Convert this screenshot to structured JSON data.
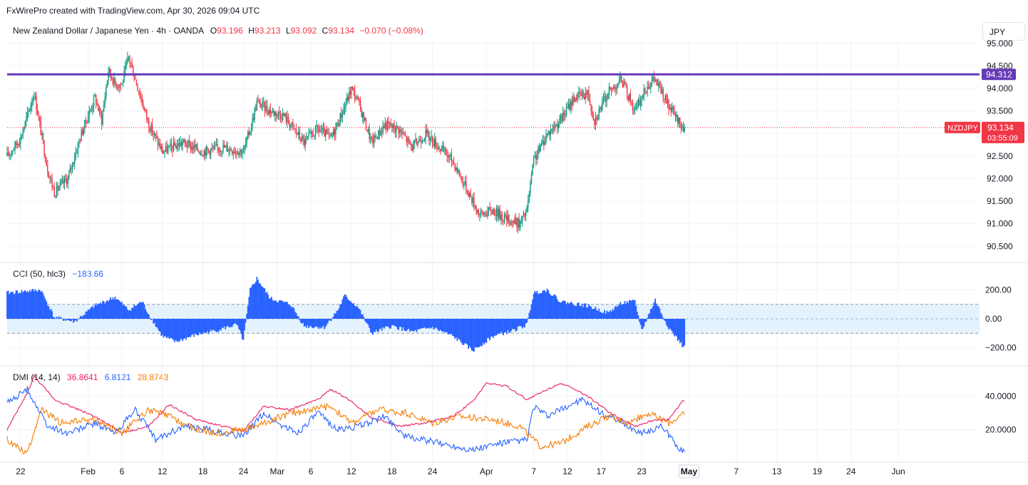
{
  "header": {
    "attribution": "FxWirePro created with TradingView.com, Apr 30, 2026 09:04 UTC",
    "symbol_title": "New Zealand Dollar / Japanese Yen · 4h · OANDA",
    "o_label": "O",
    "o_value": "93.196",
    "h_label": "H",
    "h_value": "93.213",
    "l_label": "L",
    "l_value": "93.092",
    "c_label": "C",
    "c_value": "93.134",
    "change": "−0.070 (−0.08%)",
    "currency_button": "JPY"
  },
  "price_pane": {
    "symbol_badge": "NZDJPY",
    "last_price_label": "93.134",
    "countdown": "03:55:09",
    "hline_label": "94.312",
    "y_ticks": [
      "95.000",
      "94.500",
      "94.000",
      "93.500",
      "93.000",
      "92.500",
      "92.000",
      "91.500",
      "91.000",
      "90.500"
    ]
  },
  "cci_pane": {
    "title": "CCI (50, hlc3)",
    "value": "−183.66",
    "y_ticks": [
      "200.00",
      "0.00",
      "−200.00"
    ]
  },
  "dmi_pane": {
    "title": "DMI (14, 14)",
    "plus_di": "36.8641",
    "minus_di": "6.8121",
    "adx": "28.8743",
    "y_ticks": [
      "40.0000",
      "20.0000"
    ]
  },
  "x_axis": {
    "labels": [
      "22",
      "Feb",
      "6",
      "12",
      "18",
      "24",
      "Mar",
      "6",
      "12",
      "18",
      "24",
      "Apr",
      "7",
      "12",
      "17",
      "23",
      "May",
      "7",
      "13",
      "19",
      "24",
      "Jun"
    ],
    "highlighted": "May"
  },
  "colors": {
    "bull": "#089981",
    "bear": "#f23645",
    "hline": "#673ab7",
    "cci": "#2962ff",
    "cci_band": "#e3f2fd",
    "plus_di": "#2962ff",
    "minus_di": "#f57c00",
    "adx": "#e91e63"
  },
  "chart_data": [
    {
      "type": "candlestick",
      "title": "New Zealand Dollar / Japanese Yen · 4h · OANDA",
      "ylim": [
        90.3,
        95.2
      ],
      "horizontal_line": 94.312,
      "last_price": 93.134,
      "anchors": [
        {
          "x": "Jan 20",
          "close": 92.5
        },
        {
          "x": "Jan 22",
          "close": 92.9
        },
        {
          "x": "Jan 24",
          "close": 93.9
        },
        {
          "x": "Jan 26",
          "close": 92.2
        },
        {
          "x": "Jan 27",
          "close": 91.7
        },
        {
          "x": "Jan 29",
          "close": 92.0
        },
        {
          "x": "Jan 31",
          "close": 93.0
        },
        {
          "x": "Feb 2",
          "close": 93.8
        },
        {
          "x": "Feb 3",
          "close": 93.3
        },
        {
          "x": "Feb 4",
          "close": 94.4
        },
        {
          "x": "Feb 5",
          "close": 94.1
        },
        {
          "x": "Feb 6",
          "close": 94.1
        },
        {
          "x": "Feb 7",
          "close": 94.7
        },
        {
          "x": "Feb 8",
          "close": 94.2
        },
        {
          "x": "Feb 10",
          "close": 93.2
        },
        {
          "x": "Feb 12",
          "close": 92.6
        },
        {
          "x": "Feb 15",
          "close": 92.8
        },
        {
          "x": "Feb 18",
          "close": 92.6
        },
        {
          "x": "Feb 21",
          "close": 92.7
        },
        {
          "x": "Feb 24",
          "close": 92.6
        },
        {
          "x": "Feb 25",
          "close": 93.1
        },
        {
          "x": "Feb 26",
          "close": 93.7
        },
        {
          "x": "Feb 28",
          "close": 93.5
        },
        {
          "x": "Mar 2",
          "close": 93.4
        },
        {
          "x": "Mar 5",
          "close": 92.8
        },
        {
          "x": "Mar 7",
          "close": 93.1
        },
        {
          "x": "Mar 9",
          "close": 92.9
        },
        {
          "x": "Mar 11",
          "close": 93.6
        },
        {
          "x": "Mar 12",
          "close": 94.0
        },
        {
          "x": "Mar 13",
          "close": 93.7
        },
        {
          "x": "Mar 15",
          "close": 92.8
        },
        {
          "x": "Mar 17",
          "close": 93.2
        },
        {
          "x": "Mar 19",
          "close": 93.1
        },
        {
          "x": "Mar 21",
          "close": 92.7
        },
        {
          "x": "Mar 23",
          "close": 93.0
        },
        {
          "x": "Mar 25",
          "close": 92.7
        },
        {
          "x": "Mar 27",
          "close": 92.4
        },
        {
          "x": "Mar 29",
          "close": 91.8
        },
        {
          "x": "Mar 31",
          "close": 91.2
        },
        {
          "x": "Apr 2",
          "close": 91.3
        },
        {
          "x": "Apr 4",
          "close": 91.1
        },
        {
          "x": "Apr 6",
          "close": 91.0
        },
        {
          "x": "Apr 7",
          "close": 91.3
        },
        {
          "x": "Apr 8",
          "close": 92.4
        },
        {
          "x": "Apr 10",
          "close": 93.0
        },
        {
          "x": "Apr 12",
          "close": 93.3
        },
        {
          "x": "Apr 14",
          "close": 93.8
        },
        {
          "x": "Apr 16",
          "close": 93.9
        },
        {
          "x": "Apr 17",
          "close": 93.3
        },
        {
          "x": "Apr 19",
          "close": 93.9
        },
        {
          "x": "Apr 21",
          "close": 94.2
        },
        {
          "x": "Apr 23",
          "close": 93.5
        },
        {
          "x": "Apr 25",
          "close": 94.1
        },
        {
          "x": "Apr 26",
          "close": 94.2
        },
        {
          "x": "Apr 28",
          "close": 93.6
        },
        {
          "x": "Apr 30",
          "close": 93.134
        }
      ]
    },
    {
      "type": "area",
      "title": "CCI (50, hlc3)",
      "ylim": [
        -260,
        260
      ],
      "bands": [
        -100,
        100
      ],
      "anchors": [
        {
          "x": "Jan 20",
          "y": 180
        },
        {
          "x": "Jan 25",
          "y": 200
        },
        {
          "x": "Jan 27",
          "y": 10
        },
        {
          "x": "Jan 30",
          "y": -20
        },
        {
          "x": "Feb 2",
          "y": 90
        },
        {
          "x": "Feb 5",
          "y": 150
        },
        {
          "x": "Feb 7",
          "y": 60
        },
        {
          "x": "Feb 9",
          "y": 120
        },
        {
          "x": "Feb 10",
          "y": 30
        },
        {
          "x": "Feb 12",
          "y": -120
        },
        {
          "x": "Feb 14",
          "y": -160
        },
        {
          "x": "Feb 17",
          "y": -110
        },
        {
          "x": "Feb 20",
          "y": -80
        },
        {
          "x": "Feb 23",
          "y": -40
        },
        {
          "x": "Feb 24",
          "y": -150
        },
        {
          "x": "Feb 25",
          "y": 200
        },
        {
          "x": "Feb 26",
          "y": 280
        },
        {
          "x": "Feb 28",
          "y": 140
        },
        {
          "x": "Mar 3",
          "y": 100
        },
        {
          "x": "Mar 5",
          "y": -50
        },
        {
          "x": "Mar 8",
          "y": -60
        },
        {
          "x": "Mar 10",
          "y": 60
        },
        {
          "x": "Mar 11",
          "y": 160
        },
        {
          "x": "Mar 13",
          "y": 80
        },
        {
          "x": "Mar 15",
          "y": -100
        },
        {
          "x": "Mar 18",
          "y": -50
        },
        {
          "x": "Mar 21",
          "y": -90
        },
        {
          "x": "Mar 24",
          "y": -60
        },
        {
          "x": "Mar 27",
          "y": -120
        },
        {
          "x": "Mar 30",
          "y": -220
        },
        {
          "x": "Apr 2",
          "y": -120
        },
        {
          "x": "Apr 5",
          "y": -80
        },
        {
          "x": "Apr 7",
          "y": -40
        },
        {
          "x": "Apr 8",
          "y": 180
        },
        {
          "x": "Apr 10",
          "y": 200
        },
        {
          "x": "Apr 12",
          "y": 120
        },
        {
          "x": "Apr 16",
          "y": 90
        },
        {
          "x": "Apr 19",
          "y": 40
        },
        {
          "x": "Apr 21",
          "y": 110
        },
        {
          "x": "Apr 23",
          "y": 120
        },
        {
          "x": "Apr 24",
          "y": -80
        },
        {
          "x": "Apr 26",
          "y": 130
        },
        {
          "x": "Apr 27",
          "y": 30
        },
        {
          "x": "Apr 28",
          "y": -60
        },
        {
          "x": "Apr 30",
          "y": -183.66
        }
      ]
    },
    {
      "type": "line",
      "title": "DMI (14, 14)",
      "ylim": [
        0,
        55
      ],
      "series": [
        {
          "name": "36.8641",
          "anchors": [
            {
              "x": "Jan 20",
              "y": 20
            },
            {
              "x": "Jan 23",
              "y": 42
            },
            {
              "x": "Jan 24",
              "y": 52
            },
            {
              "x": "Jan 27",
              "y": 38
            },
            {
              "x": "Feb 2",
              "y": 28
            },
            {
              "x": "Feb 6",
              "y": 18
            },
            {
              "x": "Feb 10",
              "y": 22
            },
            {
              "x": "Feb 13",
              "y": 35
            },
            {
              "x": "Feb 17",
              "y": 26
            },
            {
              "x": "Feb 21",
              "y": 22
            },
            {
              "x": "Feb 24",
              "y": 19
            },
            {
              "x": "Feb 27",
              "y": 34
            },
            {
              "x": "Mar 3",
              "y": 32
            },
            {
              "x": "Mar 7",
              "y": 38
            },
            {
              "x": "Mar 9",
              "y": 44
            },
            {
              "x": "Mar 12",
              "y": 37
            },
            {
              "x": "Mar 15",
              "y": 27
            },
            {
              "x": "Mar 19",
              "y": 22
            },
            {
              "x": "Mar 23",
              "y": 24
            },
            {
              "x": "Mar 27",
              "y": 28
            },
            {
              "x": "Mar 30",
              "y": 37
            },
            {
              "x": "Apr 1",
              "y": 48
            },
            {
              "x": "Apr 4",
              "y": 46
            },
            {
              "x": "Apr 7",
              "y": 38
            },
            {
              "x": "Apr 10",
              "y": 44
            },
            {
              "x": "Apr 12",
              "y": 48
            },
            {
              "x": "Apr 16",
              "y": 40
            },
            {
              "x": "Apr 19",
              "y": 31
            },
            {
              "x": "Apr 23",
              "y": 22
            },
            {
              "x": "Apr 26",
              "y": 26
            },
            {
              "x": "Apr 28",
              "y": 26
            },
            {
              "x": "Apr 30",
              "y": 36.8641
            }
          ]
        },
        {
          "name": "6.8121",
          "anchors": [
            {
              "x": "Jan 20",
              "y": 36
            },
            {
              "x": "Jan 23",
              "y": 44
            },
            {
              "x": "Jan 26",
              "y": 22
            },
            {
              "x": "Jan 29",
              "y": 18
            },
            {
              "x": "Feb 2",
              "y": 24
            },
            {
              "x": "Feb 5",
              "y": 18
            },
            {
              "x": "Feb 8",
              "y": 32
            },
            {
              "x": "Feb 11",
              "y": 14
            },
            {
              "x": "Feb 15",
              "y": 22
            },
            {
              "x": "Feb 19",
              "y": 20
            },
            {
              "x": "Feb 24",
              "y": 16
            },
            {
              "x": "Feb 27",
              "y": 30
            },
            {
              "x": "Mar 1",
              "y": 24
            },
            {
              "x": "Mar 4",
              "y": 18
            },
            {
              "x": "Mar 7",
              "y": 30
            },
            {
              "x": "Mar 10",
              "y": 20
            },
            {
              "x": "Mar 13",
              "y": 22
            },
            {
              "x": "Mar 17",
              "y": 28
            },
            {
              "x": "Mar 20",
              "y": 16
            },
            {
              "x": "Mar 25",
              "y": 12
            },
            {
              "x": "Mar 30",
              "y": 8
            },
            {
              "x": "Apr 3",
              "y": 12
            },
            {
              "x": "Apr 7",
              "y": 14
            },
            {
              "x": "Apr 8",
              "y": 34
            },
            {
              "x": "Apr 10",
              "y": 28
            },
            {
              "x": "Apr 13",
              "y": 34
            },
            {
              "x": "Apr 15",
              "y": 38
            },
            {
              "x": "Apr 18",
              "y": 30
            },
            {
              "x": "Apr 21",
              "y": 24
            },
            {
              "x": "Apr 24",
              "y": 18
            },
            {
              "x": "Apr 27",
              "y": 22
            },
            {
              "x": "Apr 30",
              "y": 6.8121
            }
          ]
        },
        {
          "name": "28.8743",
          "anchors": [
            {
              "x": "Jan 20",
              "y": 14
            },
            {
              "x": "Jan 23",
              "y": 6
            },
            {
              "x": "Jan 25",
              "y": 32
            },
            {
              "x": "Jan 28",
              "y": 24
            },
            {
              "x": "Feb 2",
              "y": 26
            },
            {
              "x": "Feb 6",
              "y": 18
            },
            {
              "x": "Feb 10",
              "y": 32
            },
            {
              "x": "Feb 13",
              "y": 28
            },
            {
              "x": "Feb 17",
              "y": 20
            },
            {
              "x": "Feb 20",
              "y": 18
            },
            {
              "x": "Feb 24",
              "y": 20
            },
            {
              "x": "Feb 27",
              "y": 24
            },
            {
              "x": "Mar 3",
              "y": 30
            },
            {
              "x": "Mar 6",
              "y": 32
            },
            {
              "x": "Mar 9",
              "y": 34
            },
            {
              "x": "Mar 12",
              "y": 24
            },
            {
              "x": "Mar 16",
              "y": 32
            },
            {
              "x": "Mar 20",
              "y": 30
            },
            {
              "x": "Mar 24",
              "y": 24
            },
            {
              "x": "Mar 28",
              "y": 28
            },
            {
              "x": "Apr 2",
              "y": 26
            },
            {
              "x": "Apr 6",
              "y": 22
            },
            {
              "x": "Apr 9",
              "y": 10
            },
            {
              "x": "Apr 12",
              "y": 12
            },
            {
              "x": "Apr 16",
              "y": 22
            },
            {
              "x": "Apr 19",
              "y": 28
            },
            {
              "x": "Apr 22",
              "y": 24
            },
            {
              "x": "Apr 25",
              "y": 30
            },
            {
              "x": "Apr 28",
              "y": 24
            },
            {
              "x": "Apr 30",
              "y": 28.8743
            }
          ]
        }
      ]
    }
  ]
}
